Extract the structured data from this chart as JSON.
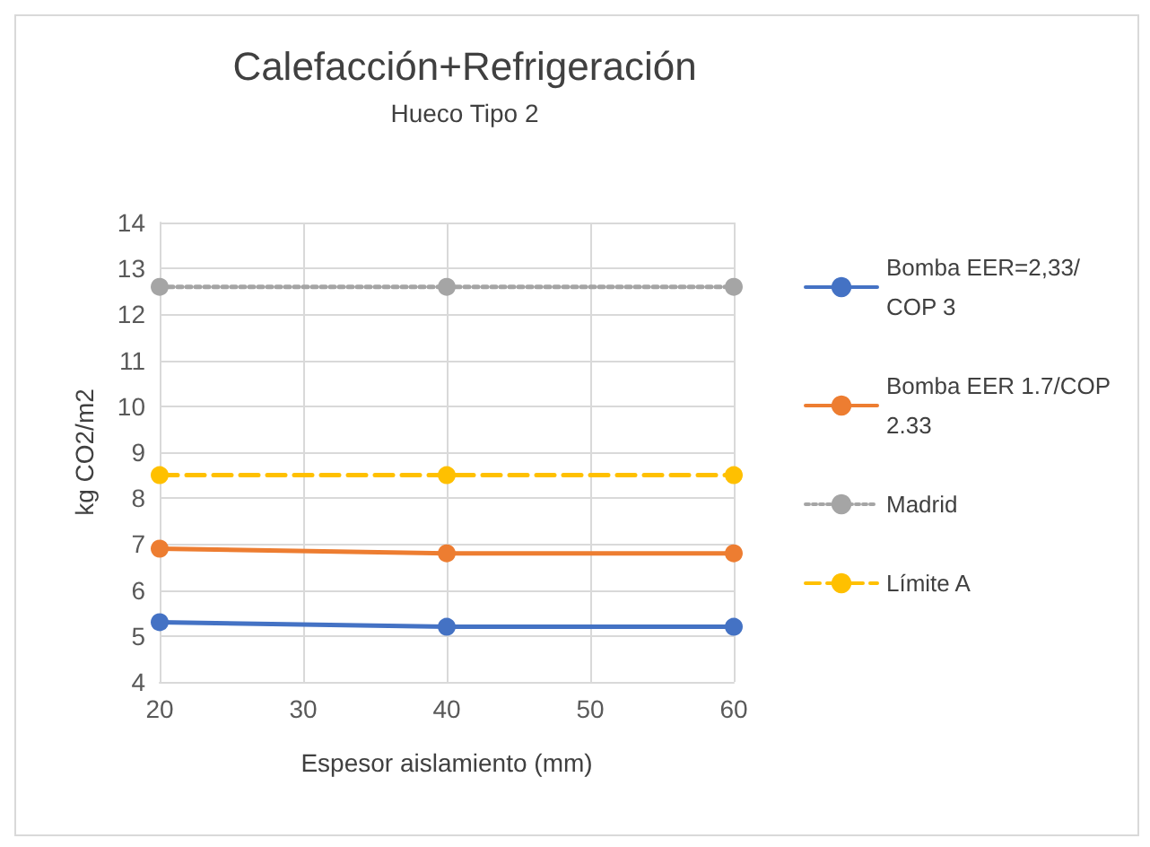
{
  "chart_data": {
    "type": "line",
    "title": "Calefacción+Refrigeración",
    "subtitle": "Hueco Tipo 2",
    "xlabel": "Espesor aislamiento (mm)",
    "ylabel": "kg CO2/m2",
    "x": [
      20,
      40,
      60
    ],
    "series": [
      {
        "name": "Bomba EER=2,33/COP 3",
        "color": "#4472c4",
        "values": [
          5.3,
          5.2,
          5.2
        ],
        "line_style": "solid"
      },
      {
        "name": "Bomba EER 1.7/COP 2.33",
        "color": "#ed7d31",
        "values": [
          6.9,
          6.8,
          6.8
        ],
        "line_style": "solid"
      },
      {
        "name": "Madrid",
        "color": "#a5a5a5",
        "values": [
          12.6,
          12.6,
          12.6
        ],
        "line_style": "dotted"
      },
      {
        "name": "Límite A",
        "color": "#ffc000",
        "values": [
          8.5,
          8.5,
          8.5
        ],
        "line_style": "dashed"
      }
    ],
    "xlim": [
      20,
      60
    ],
    "xticks": [
      20,
      30,
      40,
      50,
      60
    ],
    "ylim": [
      4,
      14
    ],
    "yticks": [
      4,
      5,
      6,
      7,
      8,
      9,
      10,
      11,
      12,
      13,
      14
    ],
    "grid": true,
    "legend": "right",
    "marker": "circle"
  }
}
